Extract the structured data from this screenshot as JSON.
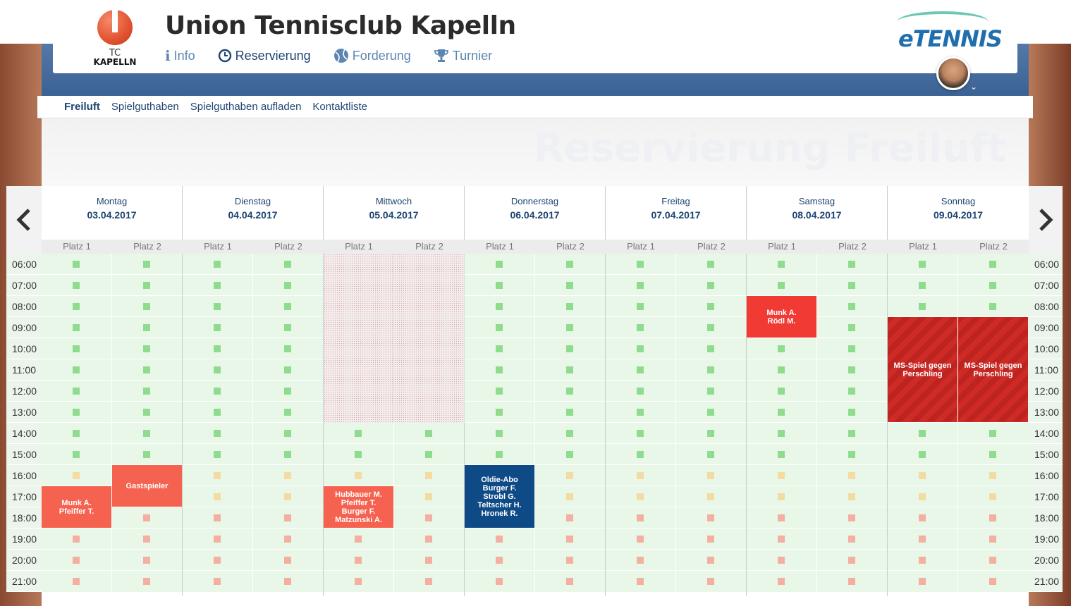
{
  "header": {
    "logo_text_top": "TC",
    "logo_text_bottom": "KAPELLN",
    "club_title": "Union Tennisclub Kapelln",
    "brand": "eTENNIS",
    "nav": [
      {
        "label": "Info",
        "icon": "info-icon"
      },
      {
        "label": "Reservierung",
        "icon": "clock-icon"
      },
      {
        "label": "Forderung",
        "icon": "tennis-ball-icon"
      },
      {
        "label": "Turnier",
        "icon": "trophy-icon"
      }
    ]
  },
  "subnav": [
    "Freiluft",
    "Spielguthaben",
    "Spielguthaben aufladen",
    "Kontaktliste"
  ],
  "page_title": "Reservierung Freiluft",
  "calendar": {
    "days": [
      {
        "name": "Montag",
        "date": "03.04.2017"
      },
      {
        "name": "Dienstag",
        "date": "04.04.2017"
      },
      {
        "name": "Mittwoch",
        "date": "05.04.2017"
      },
      {
        "name": "Donnerstag",
        "date": "06.04.2017"
      },
      {
        "name": "Freitag",
        "date": "07.04.2017"
      },
      {
        "name": "Samstag",
        "date": "08.04.2017"
      },
      {
        "name": "Sonntag",
        "date": "09.04.2017"
      }
    ],
    "courts": [
      "Platz 1",
      "Platz 2"
    ],
    "times": [
      "06:00",
      "07:00",
      "08:00",
      "09:00",
      "10:00",
      "11:00",
      "12:00",
      "13:00",
      "14:00",
      "15:00",
      "16:00",
      "17:00",
      "18:00",
      "19:00",
      "20:00",
      "21:00"
    ],
    "slot_status_colors": {
      "free": "#8fdc8f",
      "mid": "#f3dba2",
      "evening": "#f3b0a0"
    },
    "blocked": [
      {
        "day": 2,
        "court": 0,
        "start": "06:00",
        "end": "14:00"
      },
      {
        "day": 2,
        "court": 1,
        "start": "06:00",
        "end": "14:00"
      }
    ],
    "bookings": [
      {
        "day": 0,
        "court": 0,
        "start": "17:00",
        "end": "19:00",
        "lines": [
          "Munk A.",
          "Pfeiffer T."
        ],
        "style": "salmon"
      },
      {
        "day": 0,
        "court": 1,
        "start": "16:00",
        "end": "18:00",
        "lines": [
          "Gastspieler"
        ],
        "style": "salmon"
      },
      {
        "day": 2,
        "court": 0,
        "start": "17:00",
        "end": "19:00",
        "lines": [
          "Hubbauer M.",
          "Pfeiffer T.",
          "Burger F.",
          "Matzunski A."
        ],
        "style": "salmon"
      },
      {
        "day": 3,
        "court": 0,
        "start": "16:00",
        "end": "19:00",
        "lines": [
          "Oldie-Abo",
          "Burger F.",
          "Strobl G.",
          "Teltscher H.",
          "Hronek R."
        ],
        "style": "navy"
      },
      {
        "day": 5,
        "court": 0,
        "start": "08:00",
        "end": "10:00",
        "lines": [
          "Munk A.",
          "Rödl M."
        ],
        "style": "red"
      },
      {
        "day": 6,
        "court": 0,
        "start": "09:00",
        "end": "14:00",
        "lines": [
          "MS-Spiel gegen",
          "Perschling"
        ],
        "style": "striped"
      },
      {
        "day": 6,
        "court": 1,
        "start": "09:00",
        "end": "14:00",
        "lines": [
          "MS-Spiel gegen",
          "Perschling"
        ],
        "style": "striped"
      }
    ]
  },
  "controls": {
    "prev_icon": "chevron-left-icon",
    "next_icon": "chevron-right-icon"
  }
}
